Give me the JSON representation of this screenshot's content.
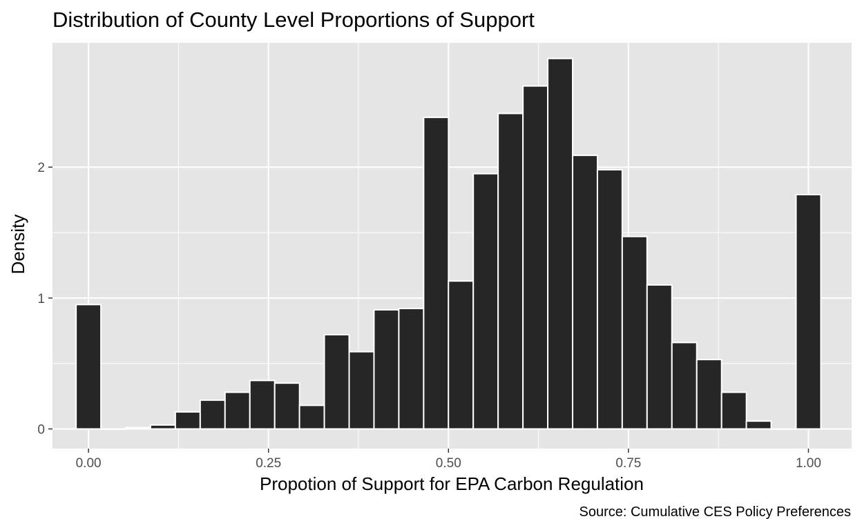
{
  "chart_data": {
    "type": "bar",
    "title": "Distribution of County Level Proportions of Support",
    "xlabel": "Propotion of Support for EPA Carbon Regulation",
    "ylabel": "Density",
    "caption": "Source: Cumulative CES Policy Preferences",
    "xlim": [
      -0.05,
      1.06
    ],
    "ylim": [
      -0.15,
      2.95
    ],
    "x_ticks": [
      0,
      0.25,
      0.5,
      0.75,
      1
    ],
    "x_tick_labels": [
      "0.00",
      "0.25",
      "0.50",
      "0.75",
      "1.00"
    ],
    "y_ticks": [
      0,
      1,
      2
    ],
    "y_tick_labels": [
      "0",
      "1",
      "2"
    ],
    "grid": true,
    "bin_width": 0.0345,
    "bins": [
      {
        "x": 0.0,
        "density": 0.95
      },
      {
        "x": 0.0345,
        "density": 0.0
      },
      {
        "x": 0.069,
        "density": 0.01
      },
      {
        "x": 0.1034,
        "density": 0.03
      },
      {
        "x": 0.1379,
        "density": 0.13
      },
      {
        "x": 0.1724,
        "density": 0.22
      },
      {
        "x": 0.2069,
        "density": 0.28
      },
      {
        "x": 0.2414,
        "density": 0.37
      },
      {
        "x": 0.2759,
        "density": 0.35
      },
      {
        "x": 0.3103,
        "density": 0.18
      },
      {
        "x": 0.3448,
        "density": 0.72
      },
      {
        "x": 0.3793,
        "density": 0.59
      },
      {
        "x": 0.4138,
        "density": 0.91
      },
      {
        "x": 0.4483,
        "density": 0.92
      },
      {
        "x": 0.4828,
        "density": 2.38
      },
      {
        "x": 0.5172,
        "density": 1.13
      },
      {
        "x": 0.5517,
        "density": 1.95
      },
      {
        "x": 0.5862,
        "density": 2.41
      },
      {
        "x": 0.6207,
        "density": 2.62
      },
      {
        "x": 0.6552,
        "density": 2.83
      },
      {
        "x": 0.6897,
        "density": 2.09
      },
      {
        "x": 0.7241,
        "density": 1.98
      },
      {
        "x": 0.7586,
        "density": 1.47
      },
      {
        "x": 0.7931,
        "density": 1.1
      },
      {
        "x": 0.8276,
        "density": 0.66
      },
      {
        "x": 0.8621,
        "density": 0.53
      },
      {
        "x": 0.8966,
        "density": 0.28
      },
      {
        "x": 0.931,
        "density": 0.06
      },
      {
        "x": 0.9655,
        "density": 0.0
      },
      {
        "x": 1.0,
        "density": 1.79
      }
    ],
    "colors": {
      "panel_background": "#e5e5e5",
      "grid": "#ffffff",
      "bar_fill": "#262626",
      "bar_outline": "#ffffff",
      "tick_label": "#4d4d4d"
    }
  }
}
